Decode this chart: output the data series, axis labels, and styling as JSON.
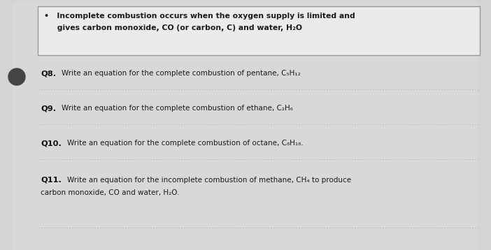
{
  "bg_color": "#d4d4d4",
  "box_bg": "#f0f0f0",
  "box_border": "#999999",
  "text_color": "#1a1a1a",
  "label_color": "#111111",
  "dotted_line_color": "#b0b0b0",
  "dot_color": "#444444",
  "font_size_box": 7.8,
  "font_size_q": 7.5,
  "font_size_label": 8.2,
  "box_line1": "•   Incomplete combustion occurs when the oxygen supply is limited and",
  "box_line2": "     gives carbon monoxide, CO (or carbon, C) and water, H₂O",
  "q8_label": "Q8.",
  "q8_text": "Write an equation for the complete combustion of pentane, C₅H₁₂",
  "q9_label": "Q9.",
  "q9_text": "Write an equation for the complete combustion of ethane, C₂H₆",
  "q10_label": "Q10.",
  "q10_text": "Write an equation for the complete combustion of octane, C₈H₁₈.",
  "q11_label": "Q11.",
  "q11_text_line1": "Write an equation for the incomplete combustion of methane, CH₄ to produce",
  "q11_text_line2": "carbon monoxide, CO and water, H₂O."
}
